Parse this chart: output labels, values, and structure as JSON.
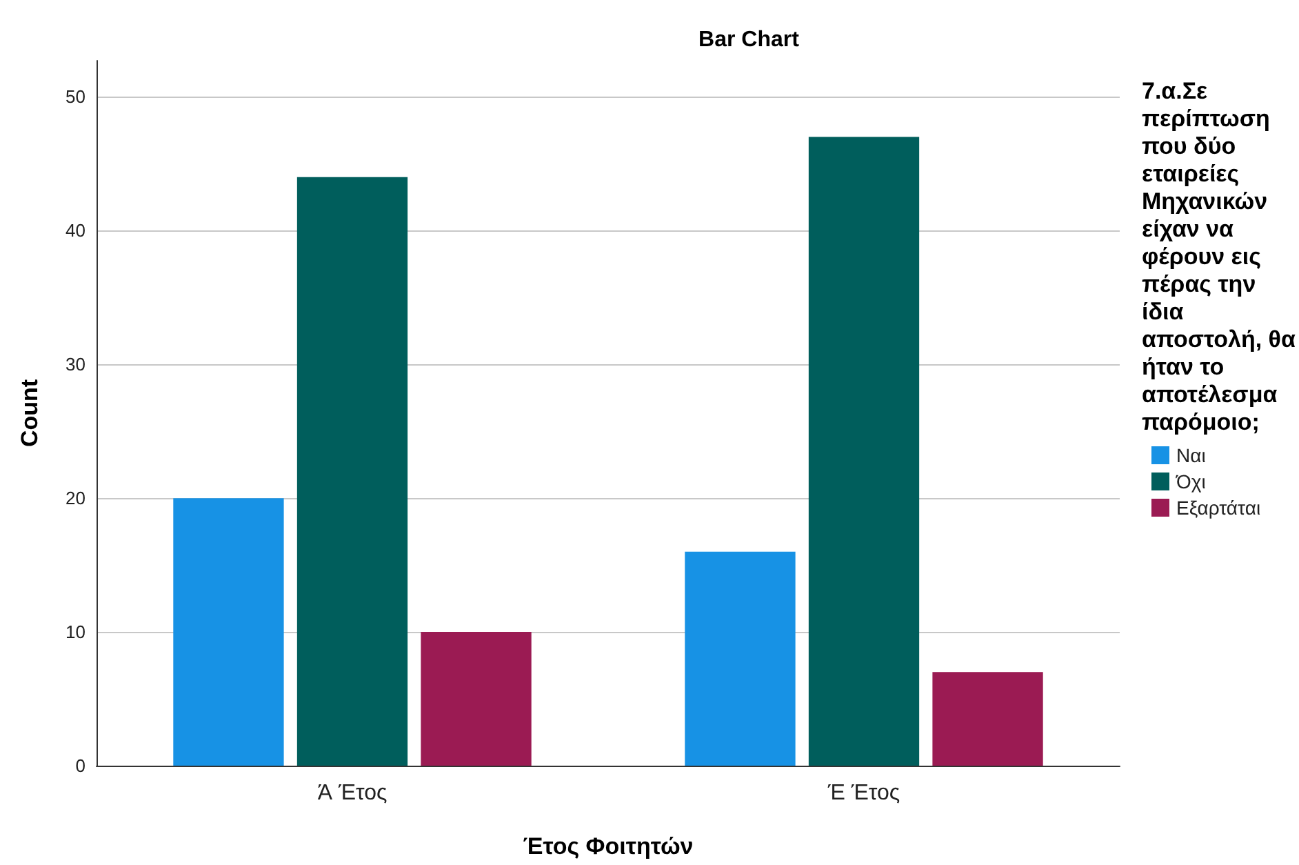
{
  "chart_data": {
    "type": "bar",
    "title": "Bar Chart",
    "xlabel": "Έτος Φοιτητών",
    "ylabel": "Count",
    "legend_title": "7.α.Σε περίπτωση που δύο εταιρείες Μηχανικών είχαν να φέρουν εις πέρας την ίδια αποστολή, θα ήταν το αποτέλεσμα παρόμοιο;",
    "categories": [
      "Ά Έτος",
      "Έ Έτος"
    ],
    "series": [
      {
        "name": "Ναι",
        "color": "#1792e5",
        "values": [
          20,
          16
        ]
      },
      {
        "name": "Όχι",
        "color": "#005e5c",
        "values": [
          44,
          47
        ]
      },
      {
        "name": "Εξαρτάται",
        "color": "#9b1b53",
        "values": [
          10,
          7
        ]
      }
    ],
    "ylim": [
      0,
      52.7
    ],
    "yticks": [
      0,
      10,
      20,
      30,
      40,
      50
    ],
    "grid": "y",
    "legend": "right"
  }
}
